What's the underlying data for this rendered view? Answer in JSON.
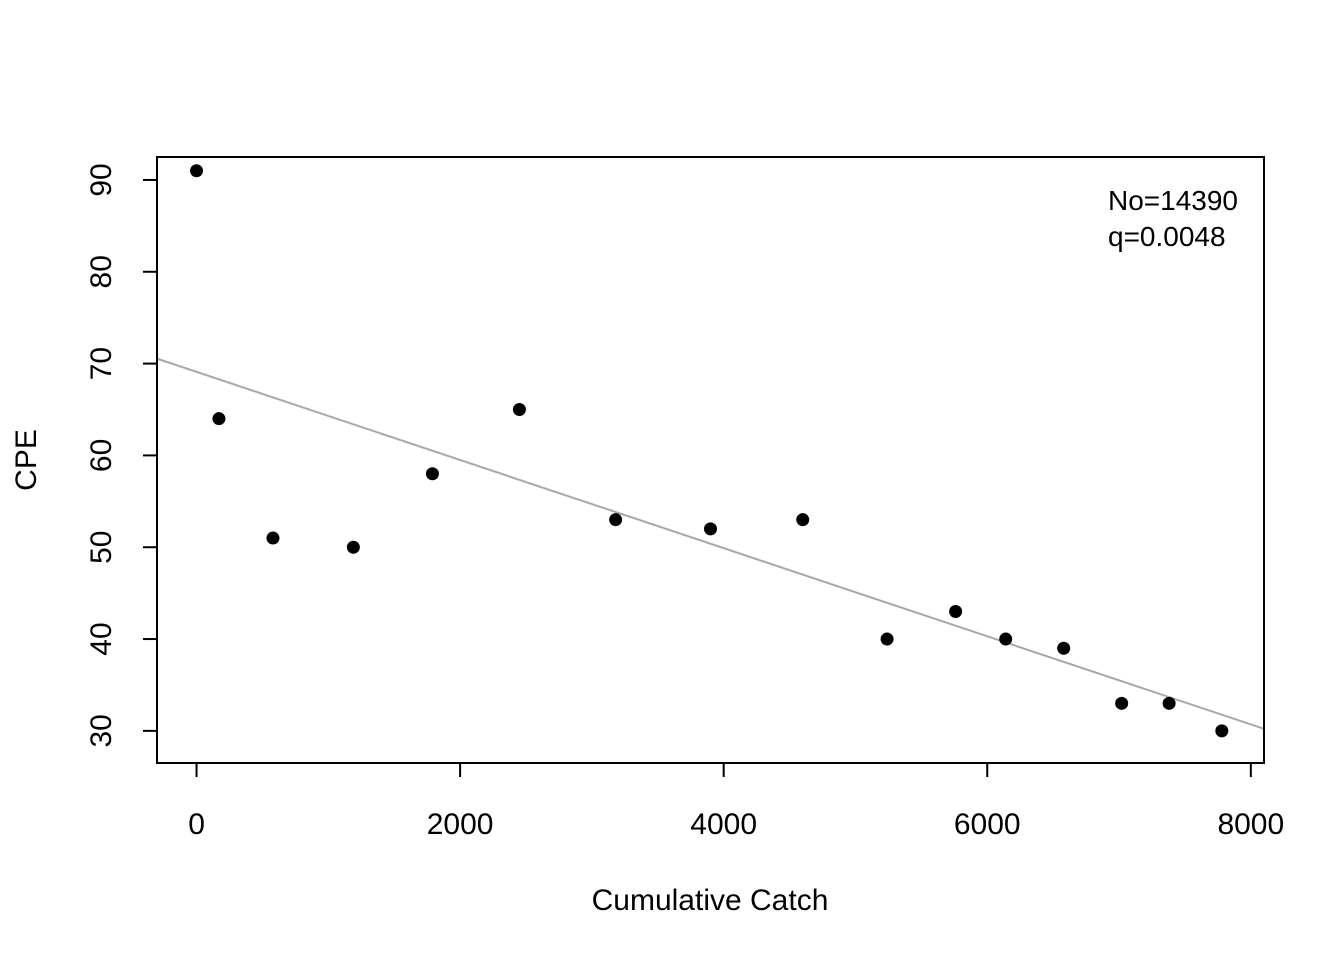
{
  "chart_data": {
    "type": "scatter",
    "xlabel": "Cumulative Catch",
    "ylabel": "CPE",
    "xlim": [
      -300,
      8100
    ],
    "ylim": [
      26.5,
      92.5
    ],
    "xticks": [
      0,
      2000,
      4000,
      6000,
      8000
    ],
    "yticks": [
      30,
      40,
      50,
      60,
      70,
      80,
      90
    ],
    "points": [
      {
        "x": 0,
        "y": 91
      },
      {
        "x": 170,
        "y": 64
      },
      {
        "x": 580,
        "y": 51
      },
      {
        "x": 1190,
        "y": 50
      },
      {
        "x": 1790,
        "y": 58
      },
      {
        "x": 2450,
        "y": 65
      },
      {
        "x": 3180,
        "y": 53
      },
      {
        "x": 3900,
        "y": 52
      },
      {
        "x": 4600,
        "y": 53
      },
      {
        "x": 5240,
        "y": 40
      },
      {
        "x": 5760,
        "y": 43
      },
      {
        "x": 6140,
        "y": 40
      },
      {
        "x": 6580,
        "y": 39
      },
      {
        "x": 7020,
        "y": 33
      },
      {
        "x": 7380,
        "y": 33
      },
      {
        "x": 7780,
        "y": 30
      }
    ],
    "fit_line": {
      "intercept": 69.1,
      "slope": -0.0048,
      "color": "#a8a8a8"
    },
    "annotations": [
      "No=14390",
      "q=0.0048"
    ],
    "annotation_position": "top-right",
    "grid": false,
    "point_color": "#000000"
  }
}
